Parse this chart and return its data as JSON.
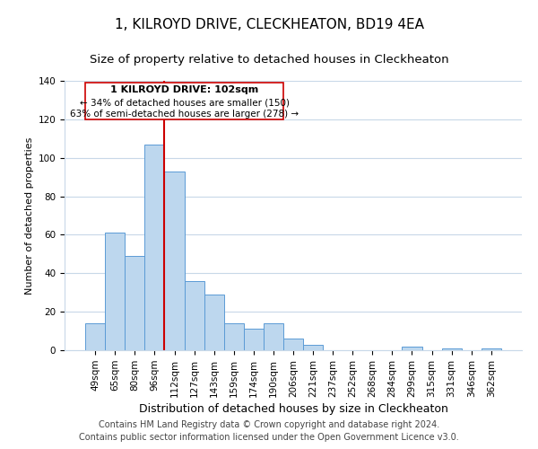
{
  "title": "1, KILROYD DRIVE, CLECKHEATON, BD19 4EA",
  "subtitle": "Size of property relative to detached houses in Cleckheaton",
  "xlabel": "Distribution of detached houses by size in Cleckheaton",
  "ylabel": "Number of detached properties",
  "bar_labels": [
    "49sqm",
    "65sqm",
    "80sqm",
    "96sqm",
    "112sqm",
    "127sqm",
    "143sqm",
    "159sqm",
    "174sqm",
    "190sqm",
    "206sqm",
    "221sqm",
    "237sqm",
    "252sqm",
    "268sqm",
    "284sqm",
    "299sqm",
    "315sqm",
    "331sqm",
    "346sqm",
    "362sqm"
  ],
  "bar_values": [
    14,
    61,
    49,
    107,
    93,
    36,
    29,
    14,
    11,
    14,
    6,
    3,
    0,
    0,
    0,
    0,
    2,
    0,
    1,
    0,
    1
  ],
  "bar_color": "#bdd7ee",
  "bar_edge_color": "#5b9bd5",
  "vline_x": 4.0,
  "vline_color": "#cc0000",
  "ylim": [
    0,
    140
  ],
  "yticks": [
    0,
    20,
    40,
    60,
    80,
    100,
    120,
    140
  ],
  "annotation_title": "1 KILROYD DRIVE: 102sqm",
  "annotation_line1": "← 34% of detached houses are smaller (150)",
  "annotation_line2": "63% of semi-detached houses are larger (278) →",
  "annotation_box_color": "#ffffff",
  "annotation_box_edge": "#cc0000",
  "footer_line1": "Contains HM Land Registry data © Crown copyright and database right 2024.",
  "footer_line2": "Contains public sector information licensed under the Open Government Licence v3.0.",
  "background_color": "#ffffff",
  "grid_color": "#c8d8e8",
  "title_fontsize": 11,
  "subtitle_fontsize": 9.5,
  "xlabel_fontsize": 9,
  "ylabel_fontsize": 8,
  "tick_fontsize": 7.5,
  "footer_fontsize": 7,
  "ann_title_fontsize": 8,
  "ann_text_fontsize": 7.5
}
